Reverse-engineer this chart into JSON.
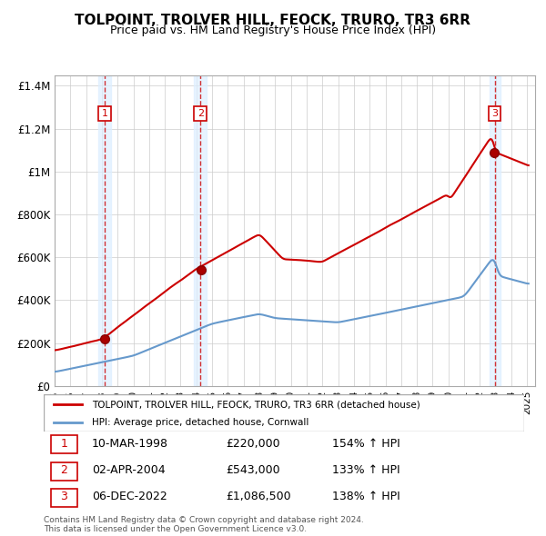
{
  "title": "TOLPOINT, TROLVER HILL, FEOCK, TRURO, TR3 6RR",
  "subtitle": "Price paid vs. HM Land Registry's House Price Index (HPI)",
  "sale_dates": [
    "1998-03-10",
    "2004-04-02",
    "2022-12-06"
  ],
  "sale_prices": [
    220000,
    543000,
    1086500
  ],
  "sale_labels": [
    "1",
    "2",
    "3"
  ],
  "sale_hpi_pct": [
    "154% ↑ HPI",
    "133% ↑ HPI",
    "138% ↑ HPI"
  ],
  "sale_date_labels": [
    "10-MAR-1998",
    "02-APR-2004",
    "06-DEC-2022"
  ],
  "sale_price_labels": [
    "£220,000",
    "£543,000",
    "£1,086,500"
  ],
  "legend_red": "TOLPOINT, TROLVER HILL, FEOCK, TRURO, TR3 6RR (detached house)",
  "legend_blue": "HPI: Average price, detached house, Cornwall",
  "footer": "Contains HM Land Registry data © Crown copyright and database right 2024.\nThis data is licensed under the Open Government Licence v3.0.",
  "red_color": "#cc0000",
  "blue_color": "#6699cc",
  "bg_shade_color": "#ddeeff",
  "dashed_color": "#cc0000",
  "ylim": [
    0,
    1450000
  ],
  "yticks": [
    0,
    200000,
    400000,
    600000,
    800000,
    1000000,
    1200000,
    1400000
  ],
  "ytick_labels": [
    "£0",
    "£200K",
    "£400K",
    "£600K",
    "£800K",
    "£1M",
    "£1.2M",
    "£1.4M"
  ]
}
